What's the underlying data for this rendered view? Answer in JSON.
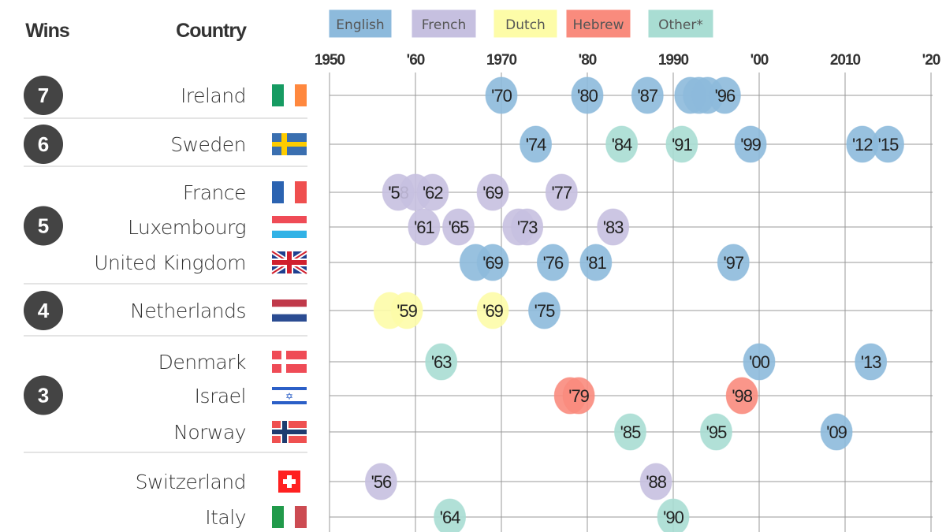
{
  "chart_data": {
    "type": "scatter",
    "headers": {
      "wins": "Wins",
      "country": "Country"
    },
    "x_ticks": [
      "1950",
      "'60",
      "1970",
      "'80",
      "1990",
      "'00",
      "2010",
      "'20"
    ],
    "xlim": [
      1950,
      2020
    ],
    "grid": true,
    "legend_placement": "top",
    "legend": [
      {
        "key": "English",
        "label": "English",
        "color": "#8dbadc"
      },
      {
        "key": "French",
        "label": "French",
        "color": "#c6c0e0"
      },
      {
        "key": "Dutch",
        "label": "Dutch",
        "color": "#fdfca8"
      },
      {
        "key": "Hebrew",
        "label": "Hebrew",
        "color": "#f98b7d"
      },
      {
        "key": "Other",
        "label": "Other*",
        "color": "#a9ddd3"
      }
    ],
    "groups": [
      {
        "wins": "7",
        "countries": [
          {
            "name": "Ireland",
            "flag": "ireland-flag",
            "wins": [
              {
                "year": 1970,
                "lang": "English",
                "label": "'70"
              },
              {
                "year": 1980,
                "lang": "English",
                "label": "'80"
              },
              {
                "year": 1987,
                "lang": "English",
                "label": "'87"
              },
              {
                "year": 1992,
                "lang": "English",
                "label": ""
              },
              {
                "year": 1993,
                "lang": "English",
                "label": ""
              },
              {
                "year": 1994,
                "lang": "English",
                "label": ""
              },
              {
                "year": 1996,
                "lang": "English",
                "label": "'96"
              }
            ]
          }
        ]
      },
      {
        "wins": "6",
        "countries": [
          {
            "name": "Sweden",
            "flag": "sweden-flag",
            "wins": [
              {
                "year": 1974,
                "lang": "English",
                "label": "'74"
              },
              {
                "year": 1984,
                "lang": "Other",
                "label": "'84"
              },
              {
                "year": 1991,
                "lang": "Other",
                "label": "'91"
              },
              {
                "year": 1999,
                "lang": "English",
                "label": "'99"
              },
              {
                "year": 2012,
                "lang": "English",
                "label": "'12"
              },
              {
                "year": 2015,
                "lang": "English",
                "label": "'15"
              }
            ]
          }
        ]
      },
      {
        "wins": "5",
        "countries": [
          {
            "name": "France",
            "flag": "france-flag",
            "wins": [
              {
                "year": 1958,
                "lang": "French",
                "label": "'58"
              },
              {
                "year": 1960,
                "lang": "French",
                "label": ""
              },
              {
                "year": 1962,
                "lang": "French",
                "label": "'62"
              },
              {
                "year": 1969,
                "lang": "French",
                "label": "'69"
              },
              {
                "year": 1977,
                "lang": "French",
                "label": "'77"
              }
            ]
          },
          {
            "name": "Luxembourg",
            "flag": "luxembourg-flag",
            "wins": [
              {
                "year": 1961,
                "lang": "French",
                "label": "'61"
              },
              {
                "year": 1965,
                "lang": "French",
                "label": "'65"
              },
              {
                "year": 1972,
                "lang": "French",
                "label": ""
              },
              {
                "year": 1973,
                "lang": "French",
                "label": "'73"
              },
              {
                "year": 1983,
                "lang": "French",
                "label": "'83"
              }
            ]
          },
          {
            "name": "United Kingdom",
            "flag": "uk-flag",
            "wins": [
              {
                "year": 1967,
                "lang": "English",
                "label": ""
              },
              {
                "year": 1969,
                "lang": "English",
                "label": "'69"
              },
              {
                "year": 1976,
                "lang": "English",
                "label": "'76"
              },
              {
                "year": 1981,
                "lang": "English",
                "label": "'81"
              },
              {
                "year": 1997,
                "lang": "English",
                "label": "'97"
              }
            ]
          }
        ]
      },
      {
        "wins": "4",
        "countries": [
          {
            "name": "Netherlands",
            "flag": "netherlands-flag",
            "wins": [
              {
                "year": 1957,
                "lang": "Dutch",
                "label": ""
              },
              {
                "year": 1959,
                "lang": "Dutch",
                "label": "'59"
              },
              {
                "year": 1969,
                "lang": "Dutch",
                "label": "'69"
              },
              {
                "year": 1975,
                "lang": "English",
                "label": "'75"
              }
            ]
          }
        ]
      },
      {
        "wins": "3",
        "countries": [
          {
            "name": "Denmark",
            "flag": "denmark-flag",
            "wins": [
              {
                "year": 1963,
                "lang": "Other",
                "label": "'63"
              },
              {
                "year": 2000,
                "lang": "English",
                "label": "'00"
              },
              {
                "year": 2013,
                "lang": "English",
                "label": "'13"
              }
            ]
          },
          {
            "name": "Israel",
            "flag": "israel-flag",
            "wins": [
              {
                "year": 1978,
                "lang": "Hebrew",
                "label": ""
              },
              {
                "year": 1979,
                "lang": "Hebrew",
                "label": "'79"
              },
              {
                "year": 1998,
                "lang": "Hebrew",
                "label": "'98"
              }
            ]
          },
          {
            "name": "Norway",
            "flag": "norway-flag",
            "wins": [
              {
                "year": 1985,
                "lang": "Other",
                "label": "'85"
              },
              {
                "year": 1995,
                "lang": "Other",
                "label": "'95"
              },
              {
                "year": 2009,
                "lang": "English",
                "label": "'09"
              }
            ]
          }
        ]
      },
      {
        "wins": "",
        "countries": [
          {
            "name": "Switzerland",
            "flag": "switzerland-flag",
            "wins": [
              {
                "year": 1956,
                "lang": "French",
                "label": "'56"
              },
              {
                "year": 1988,
                "lang": "French",
                "label": "'88"
              }
            ]
          },
          {
            "name": "Italy",
            "flag": "italy-flag",
            "wins": [
              {
                "year": 1964,
                "lang": "Other",
                "label": "'64"
              },
              {
                "year": 1990,
                "lang": "Other",
                "label": "'90"
              }
            ]
          }
        ]
      }
    ]
  }
}
